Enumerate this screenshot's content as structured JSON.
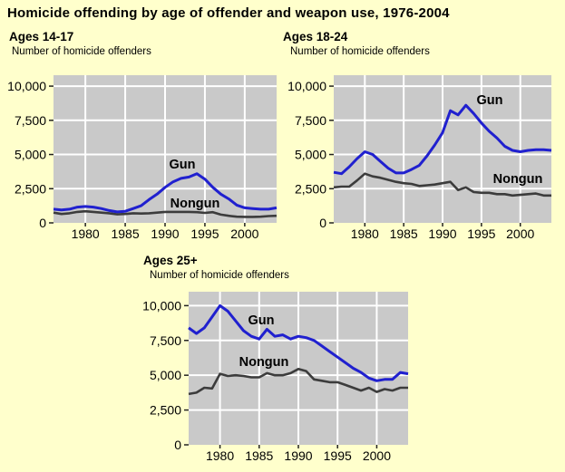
{
  "title": "Homicide offending by age of offender and weapon use, 1976-2004",
  "colors": {
    "background": "#ffffcc",
    "plot_bg": "#c9c9c9",
    "gridline": "#ffffff",
    "gun": "#2020cf",
    "nongun": "#3c3c3c",
    "tick": "#222222",
    "text": "#000000"
  },
  "chart_data": [
    {
      "type": "line",
      "title": "Ages 14-17",
      "ylabel": "Number of homicide offenders",
      "x": [
        1976,
        1977,
        1978,
        1979,
        1980,
        1981,
        1982,
        1983,
        1984,
        1985,
        1986,
        1987,
        1988,
        1989,
        1990,
        1991,
        1992,
        1993,
        1994,
        1995,
        1996,
        1997,
        1998,
        1999,
        2000,
        2001,
        2002,
        2003,
        2004
      ],
      "xticks": [
        1980,
        1985,
        1990,
        1995,
        2000
      ],
      "yticks": [
        0,
        2500,
        5000,
        7500,
        10000
      ],
      "ytick_labels": [
        "0",
        "2,500",
        "5,000",
        "7,500",
        "10,000"
      ],
      "ylim": [
        0,
        10000
      ],
      "grid": true,
      "series": [
        {
          "name": "Gun",
          "color_key": "gun",
          "values": [
            1000,
            950,
            1000,
            1150,
            1200,
            1150,
            1050,
            900,
            800,
            850,
            1050,
            1250,
            1700,
            2100,
            2600,
            3000,
            3250,
            3350,
            3600,
            3200,
            2600,
            2100,
            1750,
            1300,
            1100,
            1050,
            1000,
            1000,
            1100
          ]
        },
        {
          "name": "Nongun",
          "color_key": "nongun",
          "values": [
            750,
            650,
            700,
            800,
            850,
            800,
            750,
            700,
            620,
            650,
            700,
            680,
            700,
            750,
            800,
            800,
            800,
            800,
            780,
            730,
            780,
            600,
            520,
            450,
            440,
            440,
            450,
            500,
            520
          ]
        }
      ]
    },
    {
      "type": "line",
      "title": "Ages 18-24",
      "ylabel": "Number of homicide offenders",
      "x": [
        1976,
        1977,
        1978,
        1979,
        1980,
        1981,
        1982,
        1983,
        1984,
        1985,
        1986,
        1987,
        1988,
        1989,
        1990,
        1991,
        1992,
        1993,
        1994,
        1995,
        1996,
        1997,
        1998,
        1999,
        2000,
        2001,
        2002,
        2003,
        2004
      ],
      "xticks": [
        1980,
        1985,
        1990,
        1995,
        2000
      ],
      "yticks": [
        0,
        2500,
        5000,
        7500,
        10000
      ],
      "ytick_labels": [
        "0",
        "2,500",
        "5,000",
        "7,500",
        "10,000"
      ],
      "ylim": [
        0,
        10000
      ],
      "grid": true,
      "series": [
        {
          "name": "Gun",
          "color_key": "gun",
          "values": [
            3700,
            3600,
            4100,
            4700,
            5200,
            5000,
            4500,
            4000,
            3650,
            3650,
            3900,
            4200,
            4900,
            5700,
            6600,
            8200,
            7900,
            8600,
            8000,
            7300,
            6700,
            6200,
            5600,
            5300,
            5200,
            5300,
            5350,
            5350,
            5300
          ]
        },
        {
          "name": "Nongun",
          "color_key": "nongun",
          "values": [
            2600,
            2650,
            2650,
            3100,
            3600,
            3400,
            3300,
            3150,
            3000,
            2900,
            2850,
            2700,
            2750,
            2800,
            2900,
            3000,
            2400,
            2600,
            2250,
            2200,
            2200,
            2100,
            2100,
            2000,
            2050,
            2100,
            2150,
            2000,
            2000
          ]
        }
      ]
    },
    {
      "type": "line",
      "title": "Ages 25+",
      "ylabel": "Number of homicide offenders",
      "x": [
        1976,
        1977,
        1978,
        1979,
        1980,
        1981,
        1982,
        1983,
        1984,
        1985,
        1986,
        1987,
        1988,
        1989,
        1990,
        1991,
        1992,
        1993,
        1994,
        1995,
        1996,
        1997,
        1998,
        1999,
        2000,
        2001,
        2002,
        2003,
        2004
      ],
      "xticks": [
        1980,
        1985,
        1990,
        1995,
        2000
      ],
      "yticks": [
        0,
        2500,
        5000,
        7500,
        10000
      ],
      "ytick_labels": [
        "0",
        "2,500",
        "5,000",
        "7,500",
        "10,000"
      ],
      "ylim": [
        0,
        10000
      ],
      "grid": true,
      "series": [
        {
          "name": "Gun",
          "color_key": "gun",
          "values": [
            8400,
            8000,
            8400,
            9200,
            10000,
            9600,
            8900,
            8200,
            7800,
            7600,
            8300,
            7800,
            7900,
            7600,
            7800,
            7700,
            7500,
            7100,
            6700,
            6300,
            5900,
            5500,
            5200,
            4800,
            4600,
            4700,
            4700,
            5200,
            5100
          ]
        },
        {
          "name": "Nongun",
          "color_key": "nongun",
          "values": [
            3650,
            3750,
            4100,
            4050,
            5100,
            4950,
            5000,
            4950,
            4850,
            4850,
            5150,
            5000,
            5000,
            5150,
            5450,
            5300,
            4700,
            4600,
            4500,
            4500,
            4300,
            4100,
            3900,
            4100,
            3800,
            4000,
            3900,
            4100,
            4100
          ]
        }
      ]
    }
  ]
}
